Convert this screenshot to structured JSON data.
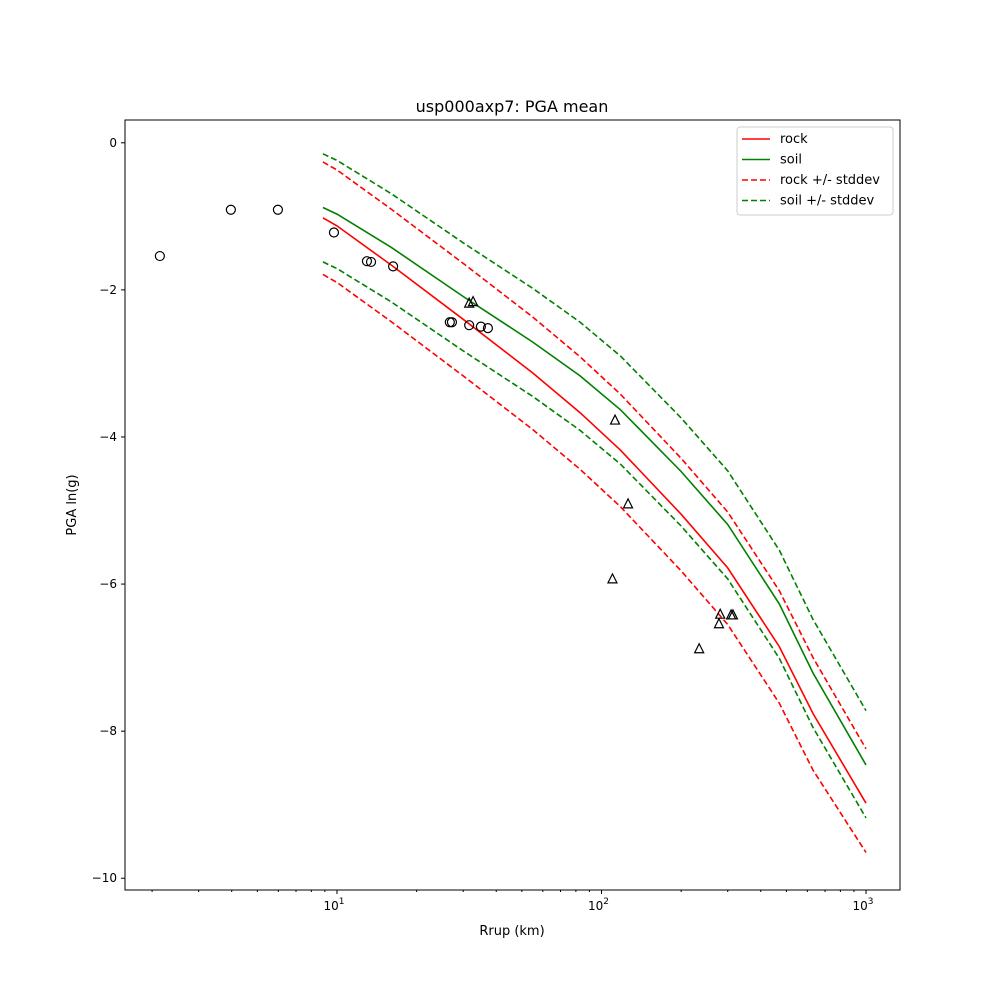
{
  "chart_data": {
    "type": "line",
    "title": "usp000axp7: PGA mean",
    "xlabel": "Rrup (km)",
    "ylabel": "PGA ln(g)",
    "xscale": "log",
    "xlim": [
      1.58,
      1344
    ],
    "ylim": [
      -10.16,
      0.31
    ],
    "xticks": [
      {
        "v": 10,
        "base": "10",
        "exp": "1"
      },
      {
        "v": 100,
        "base": "10",
        "exp": "2"
      },
      {
        "v": 1000,
        "base": "10",
        "exp": "3"
      }
    ],
    "yticks": [
      {
        "v": 0,
        "label": "0"
      },
      {
        "v": -2,
        "label": "−2"
      },
      {
        "v": -4,
        "label": "−4"
      },
      {
        "v": -6,
        "label": "−6"
      },
      {
        "v": -8,
        "label": "−8"
      },
      {
        "v": -10,
        "label": "−10"
      }
    ],
    "legend_position": "top-right",
    "x": [
      8.85,
      10,
      16,
      30,
      55,
      83,
      118,
      200,
      300,
      470,
      630,
      1000
    ],
    "series": [
      {
        "name": "rock",
        "color": "#ff0000",
        "dash": false,
        "values": [
          -1.02,
          -1.13,
          -1.66,
          -2.4,
          -3.13,
          -3.67,
          -4.18,
          -5.05,
          -5.78,
          -6.85,
          -7.76,
          -8.98
        ]
      },
      {
        "name": "soil",
        "color": "#008000",
        "dash": false,
        "values": [
          -0.88,
          -0.97,
          -1.42,
          -2.09,
          -2.71,
          -3.17,
          -3.63,
          -4.47,
          -5.19,
          -6.27,
          -7.21,
          -8.46
        ]
      },
      {
        "name": "rock +/- stddev",
        "color": "#ff0000",
        "dash": true,
        "upper": [
          -0.26,
          -0.37,
          -0.9,
          -1.64,
          -2.37,
          -2.91,
          -3.42,
          -4.29,
          -5.02,
          -6.09,
          -7.0,
          -8.24
        ],
        "lower": [
          -1.79,
          -1.9,
          -2.43,
          -3.17,
          -3.9,
          -4.44,
          -4.95,
          -5.82,
          -6.55,
          -7.62,
          -8.53,
          -9.65
        ]
      },
      {
        "name": "soil +/- stddev",
        "color": "#008000",
        "dash": true,
        "upper": [
          -0.15,
          -0.24,
          -0.69,
          -1.36,
          -1.98,
          -2.44,
          -2.9,
          -3.74,
          -4.46,
          -5.54,
          -6.48,
          -7.72
        ],
        "lower": [
          -1.62,
          -1.71,
          -2.16,
          -2.83,
          -3.45,
          -3.91,
          -4.37,
          -5.21,
          -5.93,
          -7.01,
          -7.95,
          -9.18
        ]
      }
    ],
    "observations": {
      "circles": [
        [
          2.14,
          -1.54
        ],
        [
          3.97,
          -0.91
        ],
        [
          5.98,
          -0.91
        ],
        [
          9.74,
          -1.22
        ],
        [
          12.98,
          -1.61
        ],
        [
          13.45,
          -1.62
        ],
        [
          16.3,
          -1.68
        ],
        [
          26.7,
          -2.44
        ],
        [
          27.2,
          -2.44
        ],
        [
          31.6,
          -2.48
        ],
        [
          35.0,
          -2.5
        ],
        [
          37.2,
          -2.52
        ]
      ],
      "triangles": [
        [
          31.6,
          -2.18
        ],
        [
          32.7,
          -2.16
        ],
        [
          112.5,
          -3.77
        ],
        [
          126,
          -4.91
        ],
        [
          110,
          -5.93
        ],
        [
          234,
          -6.88
        ],
        [
          281,
          -6.41
        ],
        [
          278,
          -6.54
        ],
        [
          309,
          -6.42
        ],
        [
          314,
          -6.42
        ]
      ]
    }
  }
}
